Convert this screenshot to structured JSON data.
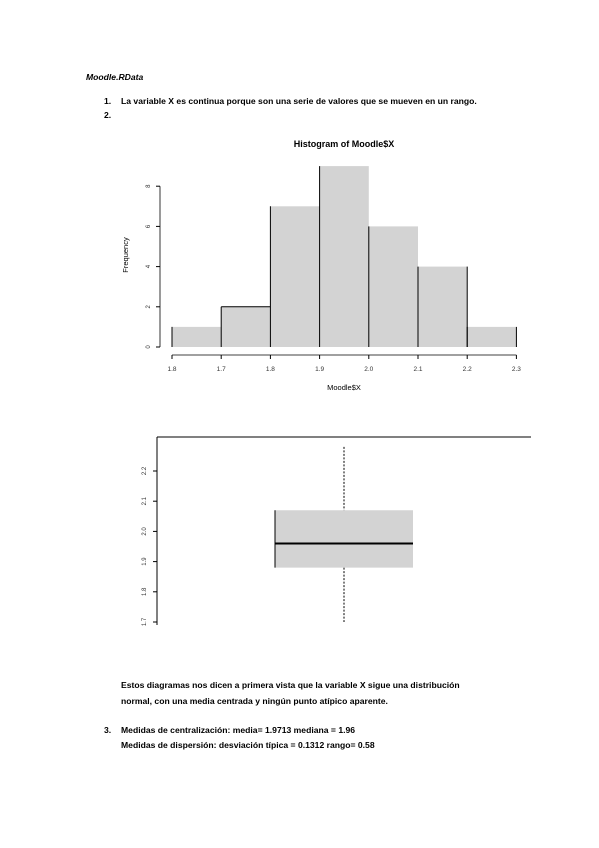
{
  "doc": {
    "title": "Moodle.RData",
    "item1_num": "1.",
    "item1_text": "La variable X es continua porque son una serie de valores que se mueven en un rango.",
    "item2_num": "2.",
    "para1": "Estos diagramas nos dicen a primera vista que la variable X sigue una distribución",
    "para2": "normal, con una media centrada y ningún punto atípico aparente.",
    "item3_num": "3.",
    "item3_line1": "Medidas de centralización: media= 1.9713   mediana = 1.96",
    "item3_line2": "Medidas de dispersión: desviación típica = 0.1312    rango= 0.58"
  },
  "chart_data": [
    {
      "type": "bar",
      "title": "Histogram of Moodle$X",
      "xlabel": "Moodle$X",
      "ylabel": "Frequency",
      "bins": [
        [
          1.8,
          1.7
        ],
        [
          1.7,
          1.8
        ],
        [
          1.8,
          1.9
        ],
        [
          1.9,
          2.0
        ],
        [
          2.0,
          2.1
        ],
        [
          2.1,
          2.2
        ],
        [
          2.2,
          2.3
        ]
      ],
      "x_ticks": [
        "1.8",
        "1.7",
        "1.8",
        "1.9",
        "2.0",
        "2.1",
        "2.2",
        "2.3"
      ],
      "values": [
        1,
        2,
        7,
        9,
        6,
        4,
        1
      ],
      "y_ticks": [
        "0",
        "2",
        "4",
        "6",
        "8"
      ],
      "ylim": [
        0,
        9
      ],
      "fill": "#d3d3d3"
    },
    {
      "type": "boxplot",
      "y_ticks": [
        "1.7",
        "1.8",
        "1.9",
        "2.0",
        "2.1",
        "2.2"
      ],
      "ylim": [
        1.7,
        2.3
      ],
      "min": 1.7,
      "q1": 1.88,
      "median": 1.96,
      "q3": 2.07,
      "max": 2.28,
      "fill": "#d3d3d3"
    }
  ]
}
